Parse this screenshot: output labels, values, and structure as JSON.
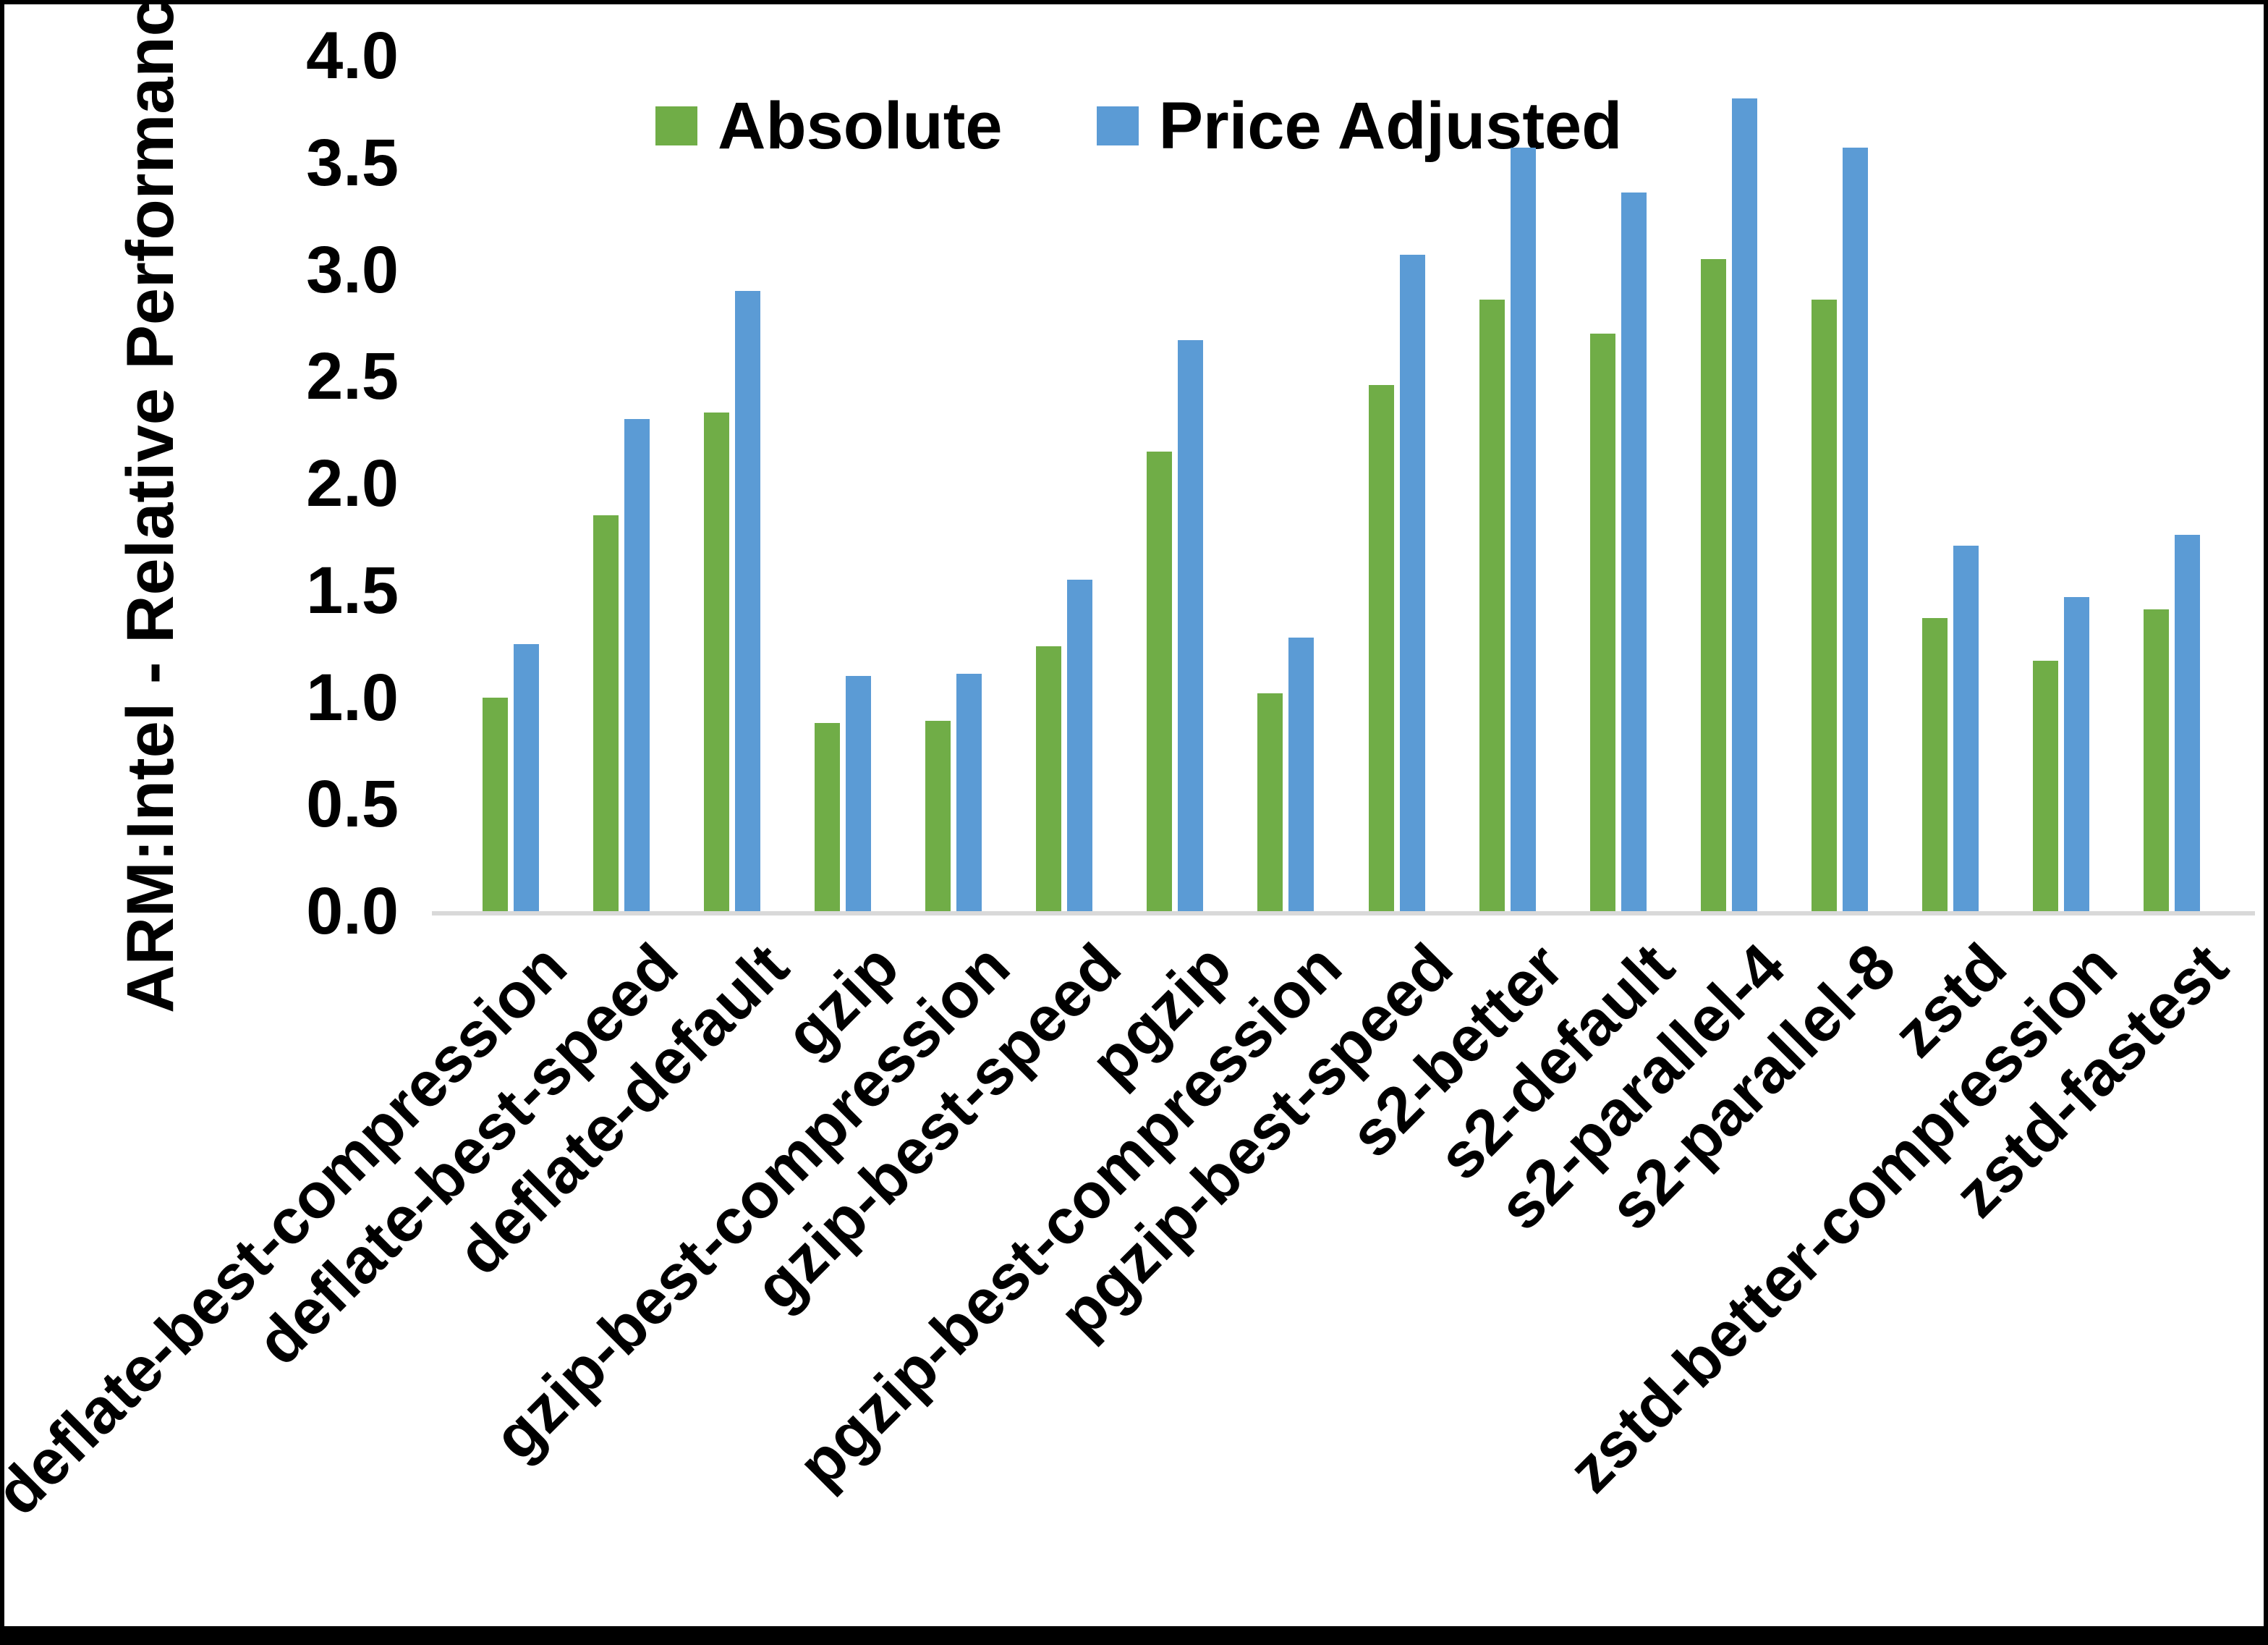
{
  "figure": {
    "ylabel": "ARM:Intel - Relative Performance"
  },
  "chart_data": {
    "type": "bar",
    "title": "",
    "xlabel": "",
    "ylabel": "ARM:Intel - Relative Performance",
    "ylim": [
      0.0,
      4.0
    ],
    "ytick_step": 0.5,
    "yticks": [
      "4.0",
      "3.5",
      "3.0",
      "2.5",
      "2.0",
      "1.5",
      "1.0",
      "0.5",
      "0.0"
    ],
    "grid": false,
    "legend_position": "top",
    "axis_line_color": "#D9D9D9",
    "categories": [
      "deflate-best-compression",
      "deflate-best-speed",
      "deflate-default",
      "gzip",
      "gzip-best-compression",
      "gzip-best-speed",
      "pgzip",
      "pgzip-best-compression",
      "pgzip-best-speed",
      "s2-better",
      "s2-default",
      "s2-parallel-4",
      "s2-parallel-8",
      "zstd",
      "zstd-better-compression",
      "zstd-fastest"
    ],
    "series": [
      {
        "name": "Absolute",
        "color": "#70AD47",
        "values": [
          1.0,
          1.85,
          2.33,
          0.88,
          0.89,
          1.24,
          2.15,
          1.02,
          2.46,
          2.86,
          2.7,
          3.05,
          2.86,
          1.37,
          1.17,
          1.41
        ]
      },
      {
        "name": "Price Adjusted",
        "color": "#5B9BD5",
        "values": [
          1.25,
          2.3,
          2.9,
          1.1,
          1.11,
          1.55,
          2.67,
          1.28,
          3.07,
          3.57,
          3.36,
          3.8,
          3.57,
          1.71,
          1.47,
          1.76
        ]
      }
    ]
  }
}
